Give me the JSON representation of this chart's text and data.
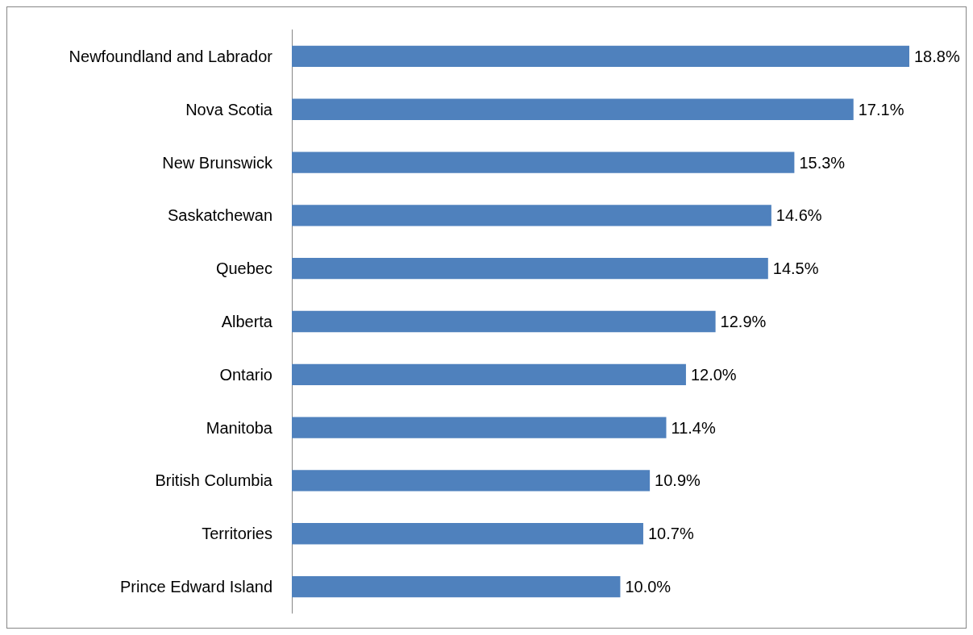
{
  "chart_data": {
    "type": "bar",
    "orientation": "horizontal",
    "categories": [
      "Newfoundland and Labrador",
      "Nova Scotia",
      "New Brunswick",
      "Saskatchewan",
      "Quebec",
      "Alberta",
      "Ontario",
      "Manitoba",
      "British Columbia",
      "Territories",
      "Prince Edward Island"
    ],
    "values": [
      18.8,
      17.1,
      15.3,
      14.6,
      14.5,
      12.9,
      12.0,
      11.4,
      10.9,
      10.7,
      10.0
    ],
    "value_labels": [
      "18.8%",
      "17.1%",
      "15.3%",
      "14.6%",
      "14.5%",
      "12.9%",
      "12.0%",
      "11.4%",
      "10.9%",
      "10.7%",
      "10.0%"
    ],
    "color": "#4f81bd"
  }
}
